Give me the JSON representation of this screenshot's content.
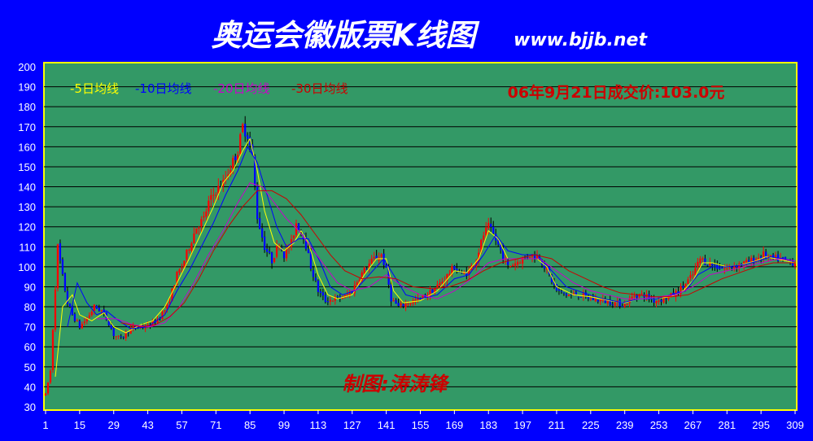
{
  "chart_data": {
    "type": "candlestick",
    "title": "奥运会徽版票K线图",
    "site": "www.bjjb.net",
    "annotation": "06年9月21日成交价:103.0元",
    "credit": "制图:涛涛锋",
    "ylim": [
      30,
      200
    ],
    "y_ticks": [
      30,
      40,
      50,
      60,
      70,
      80,
      90,
      100,
      110,
      120,
      130,
      140,
      150,
      160,
      170,
      180,
      190,
      200
    ],
    "x_range": [
      1,
      309
    ],
    "x_ticks": [
      1,
      15,
      29,
      43,
      57,
      71,
      85,
      99,
      113,
      127,
      141,
      155,
      169,
      183,
      197,
      211,
      225,
      239,
      253,
      267,
      281,
      295,
      309
    ],
    "grid": "horizontal",
    "legend": [
      {
        "label": "-5日均线",
        "color": "#ffff00"
      },
      {
        "label": "-10日均线",
        "color": "#0000ff"
      },
      {
        "label": "-20日均线",
        "color": "#cc00cc"
      },
      {
        "label": "-30日均线",
        "color": "#cc0000"
      }
    ],
    "price_path": [
      [
        1,
        36
      ],
      [
        3,
        48
      ],
      [
        5,
        90
      ],
      [
        6,
        110
      ],
      [
        8,
        95
      ],
      [
        10,
        82
      ],
      [
        12,
        76
      ],
      [
        15,
        70
      ],
      [
        18,
        74
      ],
      [
        21,
        80
      ],
      [
        24,
        78
      ],
      [
        27,
        72
      ],
      [
        29,
        66
      ],
      [
        32,
        64
      ],
      [
        35,
        68
      ],
      [
        38,
        70
      ],
      [
        43,
        70
      ],
      [
        47,
        74
      ],
      [
        51,
        80
      ],
      [
        55,
        96
      ],
      [
        57,
        100
      ],
      [
        60,
        110
      ],
      [
        63,
        120
      ],
      [
        66,
        124
      ],
      [
        68,
        132
      ],
      [
        71,
        138
      ],
      [
        74,
        142
      ],
      [
        77,
        150
      ],
      [
        80,
        158
      ],
      [
        82,
        170
      ],
      [
        84,
        166
      ],
      [
        86,
        155
      ],
      [
        88,
        125
      ],
      [
        91,
        110
      ],
      [
        94,
        103
      ],
      [
        97,
        112
      ],
      [
        99,
        106
      ],
      [
        102,
        112
      ],
      [
        104,
        122
      ],
      [
        107,
        116
      ],
      [
        110,
        100
      ],
      [
        113,
        88
      ],
      [
        116,
        83
      ],
      [
        120,
        84
      ],
      [
        124,
        85
      ],
      [
        127,
        88
      ],
      [
        130,
        95
      ],
      [
        133,
        100
      ],
      [
        136,
        104
      ],
      [
        139,
        106
      ],
      [
        141,
        98
      ],
      [
        143,
        84
      ],
      [
        146,
        80
      ],
      [
        150,
        82
      ],
      [
        155,
        84
      ],
      [
        160,
        88
      ],
      [
        165,
        94
      ],
      [
        169,
        100
      ],
      [
        172,
        96
      ],
      [
        175,
        98
      ],
      [
        178,
        104
      ],
      [
        181,
        116
      ],
      [
        183,
        120
      ],
      [
        185,
        116
      ],
      [
        188,
        108
      ],
      [
        191,
        100
      ],
      [
        194,
        102
      ],
      [
        197,
        104
      ],
      [
        200,
        106
      ],
      [
        204,
        105
      ],
      [
        207,
        98
      ],
      [
        211,
        88
      ],
      [
        215,
        86
      ],
      [
        220,
        86
      ],
      [
        225,
        84
      ],
      [
        230,
        83
      ],
      [
        235,
        82
      ],
      [
        239,
        81
      ],
      [
        243,
        86
      ],
      [
        247,
        86
      ],
      [
        251,
        83
      ],
      [
        255,
        84
      ],
      [
        259,
        86
      ],
      [
        263,
        90
      ],
      [
        267,
        96
      ],
      [
        270,
        104
      ],
      [
        273,
        102
      ],
      [
        277,
        100
      ],
      [
        281,
        99
      ],
      [
        285,
        101
      ],
      [
        289,
        102
      ],
      [
        293,
        104
      ],
      [
        296,
        106
      ],
      [
        299,
        104
      ],
      [
        302,
        104
      ],
      [
        305,
        103
      ],
      [
        309,
        102
      ]
    ],
    "ma_paths": [
      {
        "color": "#ffff00",
        "points": [
          [
            5,
            45
          ],
          [
            8,
            80
          ],
          [
            12,
            86
          ],
          [
            15,
            76
          ],
          [
            20,
            73
          ],
          [
            25,
            77
          ],
          [
            29,
            70
          ],
          [
            34,
            67
          ],
          [
            40,
            71
          ],
          [
            45,
            73
          ],
          [
            50,
            80
          ],
          [
            55,
            92
          ],
          [
            60,
            104
          ],
          [
            65,
            117
          ],
          [
            70,
            130
          ],
          [
            74,
            142
          ],
          [
            78,
            148
          ],
          [
            82,
            158
          ],
          [
            85,
            164
          ],
          [
            88,
            148
          ],
          [
            91,
            128
          ],
          [
            95,
            112
          ],
          [
            99,
            108
          ],
          [
            103,
            112
          ],
          [
            106,
            118
          ],
          [
            109,
            112
          ],
          [
            113,
            96
          ],
          [
            117,
            86
          ],
          [
            121,
            84
          ],
          [
            127,
            86
          ],
          [
            132,
            96
          ],
          [
            137,
            104
          ],
          [
            141,
            104
          ],
          [
            144,
            88
          ],
          [
            148,
            82
          ],
          [
            155,
            83
          ],
          [
            162,
            88
          ],
          [
            169,
            98
          ],
          [
            174,
            97
          ],
          [
            179,
            104
          ],
          [
            183,
            118
          ],
          [
            187,
            114
          ],
          [
            191,
            104
          ],
          [
            197,
            104
          ],
          [
            203,
            104
          ],
          [
            207,
            100
          ],
          [
            211,
            90
          ],
          [
            218,
            86
          ],
          [
            225,
            85
          ],
          [
            233,
            83
          ],
          [
            239,
            82
          ],
          [
            245,
            84
          ],
          [
            251,
            84
          ],
          [
            258,
            85
          ],
          [
            263,
            88
          ],
          [
            267,
            93
          ],
          [
            271,
            102
          ],
          [
            275,
            102
          ],
          [
            281,
            100
          ],
          [
            287,
            101
          ],
          [
            293,
            103
          ],
          [
            297,
            105
          ],
          [
            301,
            104
          ],
          [
            305,
            103
          ],
          [
            309,
            102
          ]
        ]
      },
      {
        "color": "#0000ff",
        "points": [
          [
            10,
            70
          ],
          [
            14,
            92
          ],
          [
            18,
            82
          ],
          [
            22,
            76
          ],
          [
            26,
            78
          ],
          [
            30,
            74
          ],
          [
            36,
            69
          ],
          [
            43,
            70
          ],
          [
            50,
            76
          ],
          [
            55,
            88
          ],
          [
            60,
            98
          ],
          [
            65,
            110
          ],
          [
            70,
            122
          ],
          [
            75,
            136
          ],
          [
            80,
            148
          ],
          [
            84,
            160
          ],
          [
            88,
            152
          ],
          [
            92,
            136
          ],
          [
            96,
            120
          ],
          [
            100,
            110
          ],
          [
            105,
            114
          ],
          [
            109,
            114
          ],
          [
            114,
            102
          ],
          [
            118,
            90
          ],
          [
            123,
            86
          ],
          [
            128,
            88
          ],
          [
            134,
            96
          ],
          [
            140,
            104
          ],
          [
            144,
            96
          ],
          [
            149,
            86
          ],
          [
            155,
            84
          ],
          [
            162,
            86
          ],
          [
            169,
            94
          ],
          [
            175,
            96
          ],
          [
            181,
            106
          ],
          [
            186,
            116
          ],
          [
            191,
            108
          ],
          [
            197,
            106
          ],
          [
            203,
            106
          ],
          [
            209,
            98
          ],
          [
            215,
            90
          ],
          [
            222,
            87
          ],
          [
            230,
            84
          ],
          [
            238,
            82
          ],
          [
            245,
            84
          ],
          [
            252,
            84
          ],
          [
            258,
            86
          ],
          [
            264,
            88
          ],
          [
            269,
            96
          ],
          [
            275,
            100
          ],
          [
            281,
            100
          ],
          [
            288,
            101
          ],
          [
            294,
            103
          ],
          [
            299,
            105
          ],
          [
            304,
            104
          ],
          [
            309,
            103
          ]
        ]
      },
      {
        "color": "#cc00cc",
        "points": [
          [
            22,
            74
          ],
          [
            30,
            74
          ],
          [
            37,
            71
          ],
          [
            44,
            70
          ],
          [
            50,
            72
          ],
          [
            56,
            80
          ],
          [
            62,
            92
          ],
          [
            68,
            106
          ],
          [
            74,
            118
          ],
          [
            80,
            132
          ],
          [
            85,
            142
          ],
          [
            90,
            140
          ],
          [
            95,
            132
          ],
          [
            100,
            124
          ],
          [
            105,
            118
          ],
          [
            110,
            110
          ],
          [
            116,
            100
          ],
          [
            121,
            92
          ],
          [
            127,
            88
          ],
          [
            134,
            90
          ],
          [
            141,
            96
          ],
          [
            148,
            90
          ],
          [
            155,
            86
          ],
          [
            162,
            84
          ],
          [
            169,
            88
          ],
          [
            176,
            94
          ],
          [
            183,
            102
          ],
          [
            190,
            104
          ],
          [
            197,
            104
          ],
          [
            204,
            104
          ],
          [
            211,
            98
          ],
          [
            218,
            92
          ],
          [
            225,
            88
          ],
          [
            232,
            86
          ],
          [
            239,
            84
          ],
          [
            246,
            84
          ],
          [
            253,
            85
          ],
          [
            260,
            86
          ],
          [
            267,
            90
          ],
          [
            274,
            96
          ],
          [
            281,
            98
          ],
          [
            288,
            100
          ],
          [
            295,
            102
          ],
          [
            302,
            104
          ],
          [
            309,
            103
          ]
        ]
      },
      {
        "color": "#cc0000",
        "points": [
          [
            32,
            72
          ],
          [
            40,
            70
          ],
          [
            46,
            71
          ],
          [
            52,
            75
          ],
          [
            58,
            82
          ],
          [
            64,
            94
          ],
          [
            70,
            108
          ],
          [
            76,
            120
          ],
          [
            82,
            130
          ],
          [
            88,
            138
          ],
          [
            94,
            138
          ],
          [
            100,
            134
          ],
          [
            106,
            126
          ],
          [
            112,
            116
          ],
          [
            118,
            106
          ],
          [
            124,
            98
          ],
          [
            131,
            94
          ],
          [
            138,
            95
          ],
          [
            145,
            94
          ],
          [
            152,
            90
          ],
          [
            160,
            89
          ],
          [
            167,
            90
          ],
          [
            174,
            93
          ],
          [
            181,
            98
          ],
          [
            188,
            102
          ],
          [
            195,
            104
          ],
          [
            202,
            106
          ],
          [
            209,
            104
          ],
          [
            216,
            98
          ],
          [
            223,
            94
          ],
          [
            230,
            90
          ],
          [
            237,
            87
          ],
          [
            244,
            86
          ],
          [
            251,
            85
          ],
          [
            258,
            85
          ],
          [
            265,
            86
          ],
          [
            272,
            90
          ],
          [
            279,
            94
          ],
          [
            286,
            97
          ],
          [
            293,
            100
          ],
          [
            300,
            102
          ],
          [
            309,
            102
          ]
        ]
      }
    ]
  }
}
